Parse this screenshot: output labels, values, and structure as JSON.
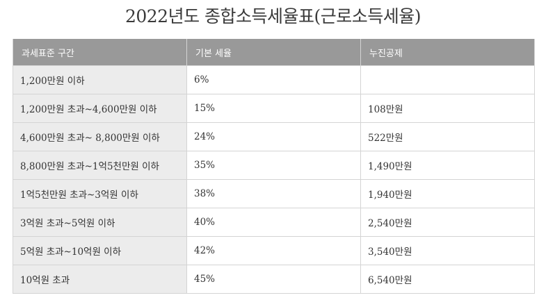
{
  "title": "2022년도 종합소득세율표(근로소득세율)",
  "table": {
    "headers": [
      "과세표준 구간",
      "기본 세율",
      "누진공제"
    ],
    "rows": [
      {
        "range": "1,200만원 이하",
        "rate": "6%",
        "deduction": ""
      },
      {
        "range": "1,200만원 초과~4,600만원 이하",
        "rate": "15%",
        "deduction": "108만원"
      },
      {
        "range": "4,600만원 초과~ 8,800만원 이하",
        "rate": "24%",
        "deduction": "522만원"
      },
      {
        "range": "8,800만원 초과~1억5천만원 이하",
        "rate": "35%",
        "deduction": "1,490만원"
      },
      {
        "range": "1억5천만원 초과~3억원 이하",
        "rate": "38%",
        "deduction": "1,940만원"
      },
      {
        "range": "3억원 초과~5억원 이하",
        "rate": "40%",
        "deduction": "2,540만원"
      },
      {
        "range": "5억원 초과~10억원 이하",
        "rate": "42%",
        "deduction": "3,540만원"
      },
      {
        "range": "10억원 초과",
        "rate": "45%",
        "deduction": "6,540만원"
      }
    ]
  },
  "colors": {
    "header_bg": "#999999",
    "header_text": "#ffffff",
    "range_cell_bg": "#ececec",
    "border": "#d4d4d4"
  }
}
